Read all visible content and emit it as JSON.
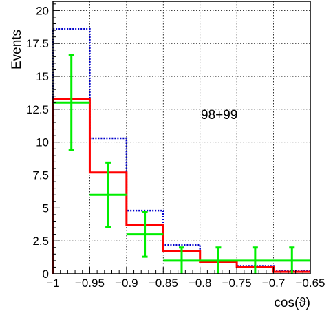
{
  "chart_data": {
    "type": "histogram",
    "xlabel": "cos(ϑ)",
    "ylabel": "Events",
    "annotation": "98+99",
    "xlim": [
      -1,
      -0.65
    ],
    "ylim": [
      0,
      20.7
    ],
    "grid": true,
    "x_ticks": [
      -1,
      -0.95,
      -0.9,
      -0.85,
      -0.8,
      -0.75,
      -0.7,
      -0.65
    ],
    "x_tick_labels": [
      "−1",
      "−0.95",
      "−0.9",
      "−0.85",
      "−0.8",
      "−0.75",
      "−0.7",
      "−0.65"
    ],
    "y_ticks": [
      0,
      2.5,
      5,
      7.5,
      10,
      12.5,
      15,
      17.5,
      20
    ],
    "y_tick_labels": [
      "0",
      "2.5",
      "5",
      "7.5",
      "10",
      "12.5",
      "15",
      "17.5",
      "20"
    ],
    "bin_edges": [
      -1,
      -0.95,
      -0.9,
      -0.85,
      -0.8,
      -0.75,
      -0.7,
      -0.65
    ],
    "series": [
      {
        "style": "histogram-dotted",
        "color": "#0000cc",
        "values": [
          18.6,
          10.3,
          4.8,
          2.2,
          1.0,
          0.6,
          0.2
        ]
      },
      {
        "style": "histogram-solid",
        "color": "#ff0000",
        "values": [
          13.3,
          7.7,
          3.7,
          1.7,
          0.9,
          0.5,
          0.15
        ]
      },
      {
        "style": "points-with-error-bars",
        "color": "#00ee00",
        "bin_centers": [
          -0.975,
          -0.925,
          -0.875,
          -0.825,
          -0.775,
          -0.725,
          -0.675
        ],
        "values": [
          13,
          6,
          3,
          1,
          1,
          1,
          1
        ],
        "err_low": [
          3.6,
          2.45,
          1.7,
          1.0,
          1.0,
          1.0,
          1.0
        ],
        "err_high": [
          3.6,
          2.45,
          1.7,
          1.0,
          1.0,
          1.0,
          1.0
        ]
      }
    ]
  }
}
